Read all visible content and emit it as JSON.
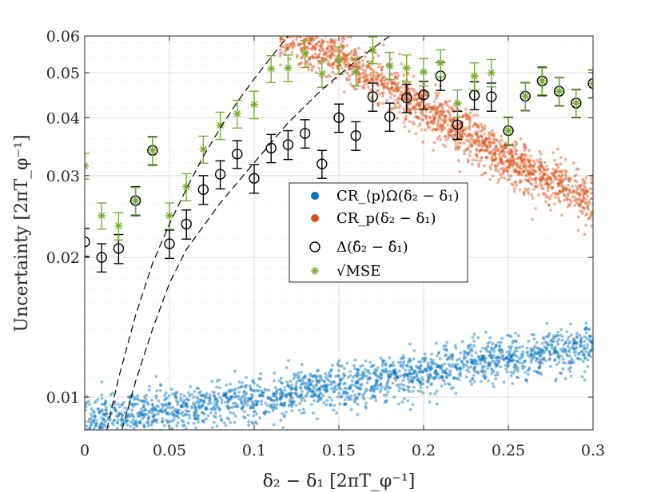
{
  "chart_data": {
    "type": "scatter",
    "xlabel": "δ₂ − δ₁ [2πT_φ⁻¹]",
    "ylabel": "Uncertainty [2πT_φ⁻¹]",
    "xlim": [
      0,
      0.3
    ],
    "ylim": [
      0.0085,
      0.06
    ],
    "yscale": "log",
    "grid": true,
    "x_ticks": [
      0,
      0.05,
      0.1,
      0.15,
      0.2,
      0.25,
      0.3
    ],
    "x_tick_labels": [
      "0",
      "0.05",
      "0.1",
      "0.15",
      "0.2",
      "0.25",
      "0.3"
    ],
    "y_ticks": [
      0.01,
      0.02,
      0.03,
      0.04,
      0.05,
      0.06
    ],
    "y_tick_labels": [
      "0.01",
      "0.02",
      "0.03",
      "0.04",
      "0.05",
      "0.06"
    ],
    "legend_position": "center",
    "legend": [
      {
        "name": "CR_⟨p⟩Ω(δ₂ − δ₁)",
        "marker": "filled-circle",
        "color": "#0072BD"
      },
      {
        "name": "CR_p(δ₂ − δ₁)",
        "marker": "filled-circle",
        "color": "#D95319"
      },
      {
        "name": "Δ(δ̂₂ − δ̂₁)",
        "marker": "open-circle",
        "color": "#000000"
      },
      {
        "name": "√MSE",
        "marker": "asterisk",
        "color": "#77AC30"
      }
    ],
    "series": [
      {
        "name": "CR_⟨p⟩Ω(δ₂ − δ₁)",
        "kind": "band-scatter",
        "color": "#0072BD",
        "x_range": [
          0,
          0.3
        ],
        "trend_x": [
          0,
          0.05,
          0.1,
          0.15,
          0.2,
          0.25,
          0.3
        ],
        "trend_y": [
          0.0089,
          0.0094,
          0.0099,
          0.0106,
          0.0114,
          0.0121,
          0.0129
        ],
        "relative_spread": 0.055,
        "count": 2000
      },
      {
        "name": "CR_p(δ₂ − δ₁)",
        "kind": "band-scatter",
        "color": "#D95319",
        "x_range": [
          0.115,
          0.3
        ],
        "trend_x": [
          0.12,
          0.15,
          0.2,
          0.25,
          0.3
        ],
        "trend_y": [
          0.0605,
          0.054,
          0.042,
          0.032,
          0.0265
        ],
        "relative_spread": 0.06,
        "count": 1700
      },
      {
        "name": "Δ(δ̂₂ − δ̂₁)",
        "kind": "errorbar",
        "color": "#000000",
        "x": [
          0,
          0.01,
          0.02,
          0.03,
          0.04,
          0.05,
          0.06,
          0.07,
          0.08,
          0.09,
          0.1,
          0.11,
          0.12,
          0.13,
          0.14,
          0.15,
          0.16,
          0.17,
          0.18,
          0.19,
          0.2,
          0.21,
          0.22,
          0.23,
          0.24,
          0.25,
          0.26,
          0.27,
          0.28,
          0.29,
          0.3
        ],
        "y": [
          0.0216,
          0.02,
          0.0209,
          0.0265,
          0.034,
          0.0214,
          0.0236,
          0.028,
          0.0302,
          0.0334,
          0.0296,
          0.0344,
          0.035,
          0.037,
          0.0318,
          0.04,
          0.0366,
          0.0444,
          0.0402,
          0.0441,
          0.0448,
          0.0492,
          0.0386,
          0.0447,
          0.0444,
          0.0375,
          0.0445,
          0.048,
          0.0456,
          0.043,
          0.0474
        ],
        "err": [
          0.0015,
          0.0014,
          0.0015,
          0.0019,
          0.0024,
          0.0015,
          0.0017,
          0.002,
          0.0021,
          0.0023,
          0.0021,
          0.0024,
          0.0025,
          0.0026,
          0.0022,
          0.0028,
          0.0026,
          0.0031,
          0.0028,
          0.0031,
          0.0031,
          0.0034,
          0.0027,
          0.0031,
          0.0031,
          0.0026,
          0.0031,
          0.0034,
          0.0032,
          0.003,
          0.0033
        ]
      },
      {
        "name": "√MSE",
        "kind": "errorbar",
        "color": "#77AC30",
        "x": [
          0,
          0.01,
          0.02,
          0.03,
          0.04,
          0.05,
          0.06,
          0.07,
          0.08,
          0.09,
          0.1,
          0.11,
          0.12,
          0.13,
          0.14,
          0.15,
          0.16,
          0.17,
          0.18,
          0.19,
          0.2,
          0.21,
          0.22,
          0.23,
          0.24,
          0.25,
          0.26,
          0.27,
          0.28,
          0.29,
          0.3
        ],
        "y": [
          0.0315,
          0.0246,
          0.0234,
          0.0265,
          0.034,
          0.0246,
          0.0284,
          0.0342,
          0.0385,
          0.0408,
          0.0427,
          0.051,
          0.0512,
          0.055,
          0.0498,
          0.0532,
          0.0502,
          0.056,
          0.0518,
          0.0512,
          0.0502,
          0.0525,
          0.043,
          0.0492,
          0.05,
          0.0375,
          0.0445,
          0.048,
          0.0456,
          0.043,
          0.0474
        ],
        "err": [
          0.002,
          0.0016,
          0.0016,
          0.0018,
          0.0023,
          0.0016,
          0.0019,
          0.0023,
          0.0026,
          0.0028,
          0.0029,
          0.0034,
          0.0034,
          0.0037,
          0.0033,
          0.0036,
          0.0034,
          0.0037,
          0.0035,
          0.0034,
          0.0034,
          0.0035,
          0.0029,
          0.0033,
          0.0034,
          0.0025,
          0.003,
          0.0032,
          0.0031,
          0.0029,
          0.0032
        ]
      },
      {
        "name": "bound-left",
        "kind": "dashed-curve",
        "color": "#000000",
        "x": [
          0.013,
          0.02,
          0.03,
          0.04,
          0.05,
          0.06,
          0.07,
          0.08,
          0.09,
          0.1,
          0.11,
          0.12
        ],
        "y": [
          0.0085,
          0.011,
          0.015,
          0.0194,
          0.0236,
          0.0281,
          0.033,
          0.038,
          0.0432,
          0.0485,
          0.054,
          0.06
        ]
      },
      {
        "name": "bound-right",
        "kind": "dashed-curve",
        "color": "#000000",
        "x": [
          0.022,
          0.03,
          0.04,
          0.05,
          0.06,
          0.08,
          0.1,
          0.12,
          0.14,
          0.16,
          0.18
        ],
        "y": [
          0.0085,
          0.0108,
          0.014,
          0.0176,
          0.0208,
          0.0262,
          0.032,
          0.039,
          0.046,
          0.053,
          0.06
        ]
      }
    ]
  }
}
